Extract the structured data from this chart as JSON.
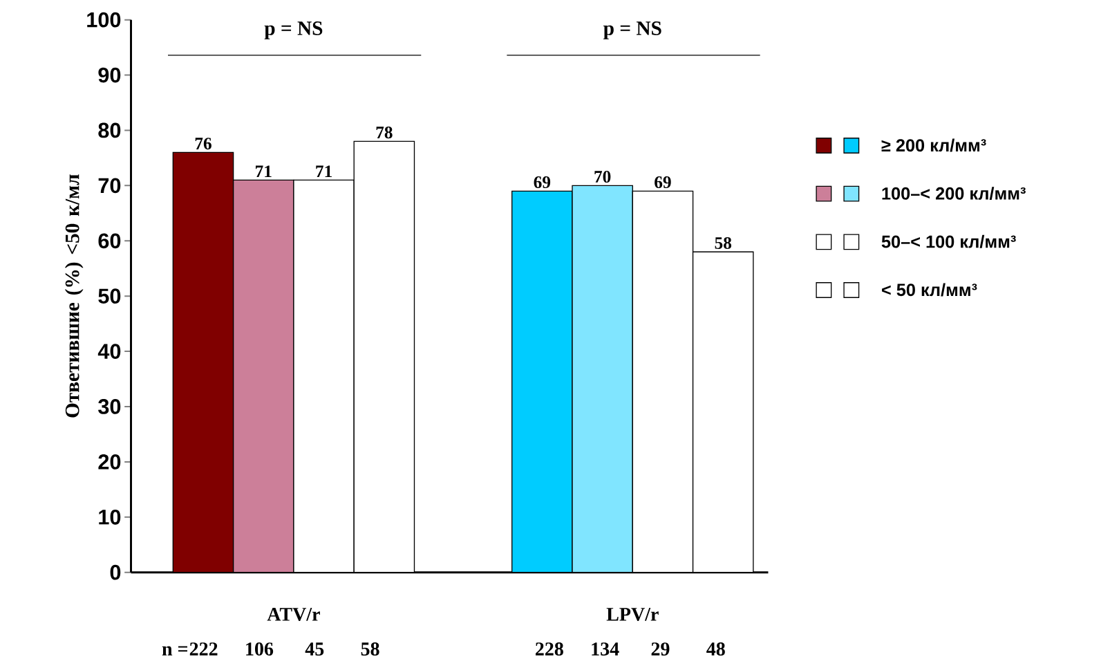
{
  "chart_data": {
    "type": "bar",
    "categories": [
      "ATV/r",
      "LPV/r"
    ],
    "ylabel": "Ответившие (%) <50 к/мл",
    "ylim": [
      0,
      100
    ],
    "yticks": [
      0,
      10,
      20,
      30,
      40,
      50,
      60,
      70,
      80,
      90,
      100
    ],
    "data_labels": true,
    "legend": "right",
    "series": [
      {
        "name": "≥ 200 кл/мм³",
        "colors": [
          "#800000",
          "#00ccff"
        ],
        "values": [
          76,
          69
        ]
      },
      {
        "name": "100–< 200 кл/мм³",
        "colors": [
          "#cc7f99",
          "#80e5ff"
        ],
        "values": [
          71,
          70
        ]
      },
      {
        "name": "50–< 100 кл/мм³",
        "colors": [
          "#ffffff",
          "#ffffff"
        ],
        "values": [
          71,
          69
        ]
      },
      {
        "name": "< 50 кл/мм³",
        "colors": [
          "#ffffff",
          "#ffffff"
        ],
        "values": [
          78,
          58
        ]
      }
    ],
    "annotations": [
      "p = NS",
      "p = NS",
      "n =",
      "222",
      "106",
      "45",
      "58",
      "228",
      "134",
      "29",
      "48"
    ]
  }
}
